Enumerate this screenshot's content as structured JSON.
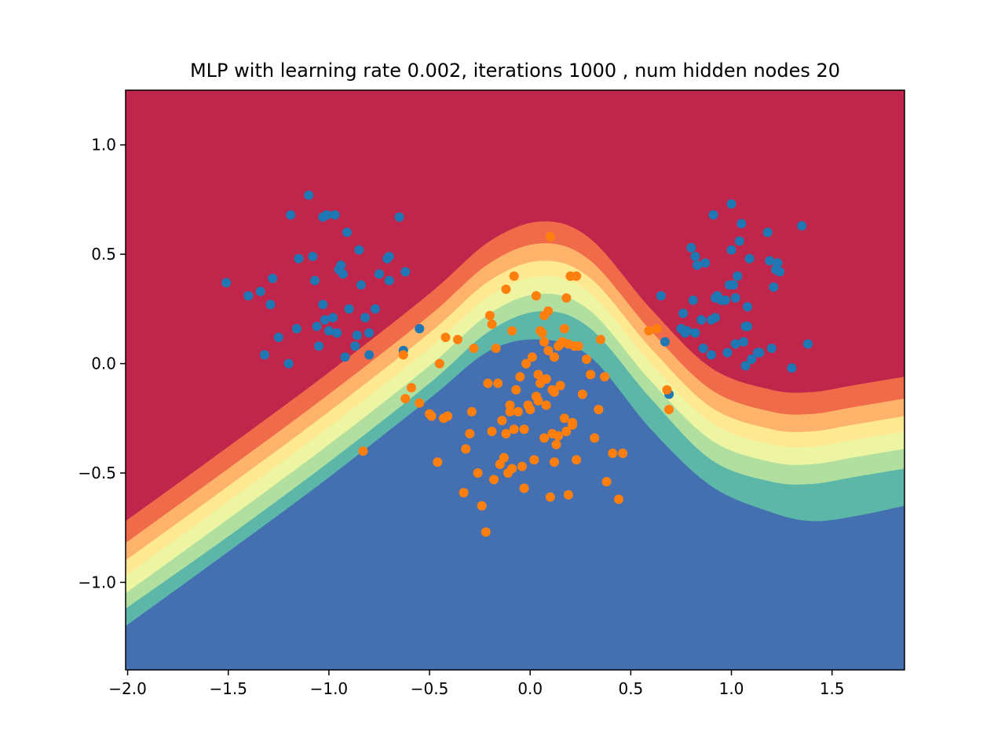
{
  "chart_data": {
    "type": "scatter",
    "title": "MLP with learning rate 0.002, iterations 1000 , num hidden nodes 20",
    "xlabel": "",
    "ylabel": "",
    "xlim": [
      -2.01,
      1.86
    ],
    "ylim": [
      -1.4,
      1.25
    ],
    "x_ticks": [
      -2.0,
      -1.5,
      -1.0,
      -0.5,
      0.0,
      0.5,
      1.0,
      1.5
    ],
    "x_tick_labels": [
      "−2.0",
      "−1.5",
      "−1.0",
      "−0.5",
      "0.0",
      "0.5",
      "1.0",
      "1.5"
    ],
    "y_ticks": [
      1.0,
      0.5,
      0.0,
      -0.5,
      -1.0
    ],
    "y_tick_labels": [
      "1.0",
      "0.5",
      "0.0",
      "−0.5",
      "−1.0"
    ],
    "grid": false,
    "legend": "none",
    "background": {
      "type": "filled-contour",
      "levels": [
        {
          "color": "#c0264b",
          "boundary": [
            [
              -2.01,
              -0.58
            ],
            [
              -1.5,
              -0.24
            ],
            [
              -1.0,
              0.1
            ],
            [
              -0.5,
              0.44
            ],
            [
              -0.2,
              0.68
            ],
            [
              0.06,
              0.78
            ],
            [
              0.3,
              0.7
            ],
            [
              0.6,
              0.38
            ],
            [
              0.9,
              0.12
            ],
            [
              1.2,
              0.02
            ],
            [
              1.4,
              0.01
            ],
            [
              1.6,
              0.04
            ],
            [
              1.86,
              0.1
            ]
          ]
        },
        {
          "color": "#f06b4a",
          "boundary": [
            [
              -2.01,
              -0.72
            ],
            [
              -1.5,
              -0.38
            ],
            [
              -1.0,
              -0.04
            ],
            [
              -0.5,
              0.32
            ],
            [
              -0.2,
              0.56
            ],
            [
              0.06,
              0.65
            ],
            [
              0.3,
              0.57
            ],
            [
              0.6,
              0.25
            ],
            [
              0.9,
              -0.02
            ],
            [
              1.2,
              -0.12
            ],
            [
              1.4,
              -0.13
            ],
            [
              1.6,
              -0.1
            ],
            [
              1.86,
              -0.06
            ]
          ]
        },
        {
          "color": "#fdb46a",
          "boundary": [
            [
              -2.01,
              -0.82
            ],
            [
              -1.5,
              -0.48
            ],
            [
              -1.0,
              -0.14
            ],
            [
              -0.5,
              0.22
            ],
            [
              -0.2,
              0.46
            ],
            [
              0.06,
              0.55
            ],
            [
              0.3,
              0.47
            ],
            [
              0.6,
              0.15
            ],
            [
              0.9,
              -0.12
            ],
            [
              1.2,
              -0.22
            ],
            [
              1.4,
              -0.23
            ],
            [
              1.6,
              -0.2
            ],
            [
              1.86,
              -0.16
            ]
          ]
        },
        {
          "color": "#fee992",
          "boundary": [
            [
              -2.01,
              -0.9
            ],
            [
              -1.5,
              -0.56
            ],
            [
              -1.0,
              -0.22
            ],
            [
              -0.5,
              0.14
            ],
            [
              -0.2,
              0.38
            ],
            [
              0.06,
              0.47
            ],
            [
              0.3,
              0.39
            ],
            [
              0.6,
              0.07
            ],
            [
              0.9,
              -0.2
            ],
            [
              1.2,
              -0.3
            ],
            [
              1.4,
              -0.31
            ],
            [
              1.6,
              -0.28
            ],
            [
              1.86,
              -0.24
            ]
          ]
        },
        {
          "color": "#eef5a2",
          "boundary": [
            [
              -2.01,
              -0.97
            ],
            [
              -1.5,
              -0.63
            ],
            [
              -1.0,
              -0.29
            ],
            [
              -0.5,
              0.07
            ],
            [
              -0.2,
              0.31
            ],
            [
              0.06,
              0.4
            ],
            [
              0.3,
              0.32
            ],
            [
              0.6,
              0.0
            ],
            [
              0.9,
              -0.27
            ],
            [
              1.2,
              -0.37
            ],
            [
              1.4,
              -0.38
            ],
            [
              1.6,
              -0.35
            ],
            [
              1.86,
              -0.31
            ]
          ]
        },
        {
          "color": "#b0dfa0",
          "boundary": [
            [
              -2.01,
              -1.05
            ],
            [
              -1.5,
              -0.71
            ],
            [
              -1.0,
              -0.37
            ],
            [
              -0.5,
              -0.01
            ],
            [
              -0.2,
              0.23
            ],
            [
              0.06,
              0.32
            ],
            [
              0.3,
              0.24
            ],
            [
              0.6,
              -0.08
            ],
            [
              0.9,
              -0.35
            ],
            [
              1.2,
              -0.45
            ],
            [
              1.4,
              -0.46
            ],
            [
              1.6,
              -0.43
            ],
            [
              1.86,
              -0.39
            ]
          ]
        },
        {
          "color": "#5db7a9",
          "boundary": [
            [
              -2.01,
              -1.12
            ],
            [
              -1.5,
              -0.79
            ],
            [
              -1.0,
              -0.45
            ],
            [
              -0.5,
              -0.09
            ],
            [
              -0.2,
              0.15
            ],
            [
              0.06,
              0.24
            ],
            [
              0.3,
              0.16
            ],
            [
              0.6,
              -0.16
            ],
            [
              0.9,
              -0.44
            ],
            [
              1.2,
              -0.54
            ],
            [
              1.4,
              -0.55
            ],
            [
              1.6,
              -0.52
            ],
            [
              1.86,
              -0.48
            ]
          ]
        },
        {
          "color": "#4470b2",
          "boundary": [
            [
              -2.01,
              -1.2
            ],
            [
              -1.5,
              -0.86
            ],
            [
              -1.0,
              -0.52
            ],
            [
              -0.5,
              -0.16
            ],
            [
              -0.2,
              0.06
            ],
            [
              0.06,
              0.11
            ],
            [
              0.3,
              0.03
            ],
            [
              0.6,
              -0.3
            ],
            [
              0.9,
              -0.56
            ],
            [
              1.2,
              -0.68
            ],
            [
              1.4,
              -0.72
            ],
            [
              1.6,
              -0.7
            ],
            [
              1.86,
              -0.65
            ]
          ]
        }
      ]
    },
    "series": [
      {
        "color": "#1f77b4",
        "x": [
          -1.51,
          -1.4,
          -1.34,
          -1.32,
          -1.29,
          -1.28,
          -1.25,
          -1.2,
          -1.19,
          -1.16,
          -1.15,
          -1.1,
          -1.08,
          -1.07,
          -1.06,
          -1.05,
          -1.03,
          -1.03,
          -1.02,
          -1.01,
          -1.0,
          -0.98,
          -0.97,
          -0.96,
          -0.95,
          -0.94,
          -0.93,
          -0.92,
          -0.91,
          -0.9,
          -0.87,
          -0.86,
          -0.85,
          -0.84,
          -0.82,
          -0.8,
          -0.8,
          -0.77,
          -0.75,
          -0.71,
          -0.7,
          -0.7,
          -0.65,
          -0.63,
          -0.62,
          -0.55,
          0.65,
          0.67,
          0.69,
          0.75,
          0.76,
          0.77,
          0.78,
          0.8,
          0.81,
          0.82,
          0.82,
          0.83,
          0.85,
          0.86,
          0.87,
          0.9,
          0.9,
          0.91,
          0.92,
          0.92,
          0.93,
          0.95,
          0.97,
          0.98,
          0.99,
          1.0,
          1.0,
          1.01,
          1.02,
          1.02,
          1.03,
          1.04,
          1.05,
          1.06,
          1.07,
          1.07,
          1.08,
          1.08,
          1.09,
          1.1,
          1.13,
          1.14,
          1.18,
          1.19,
          1.2,
          1.21,
          1.22,
          1.23,
          1.24,
          1.3,
          1.35,
          1.38
        ],
        "y": [
          0.37,
          0.31,
          0.33,
          0.04,
          0.27,
          0.39,
          0.12,
          0.0,
          0.68,
          0.16,
          0.48,
          0.77,
          0.49,
          0.38,
          0.17,
          0.08,
          0.27,
          0.67,
          0.2,
          0.68,
          0.15,
          0.21,
          0.68,
          0.14,
          0.43,
          0.45,
          0.41,
          0.03,
          0.6,
          0.25,
          0.08,
          0.13,
          0.52,
          0.36,
          0.21,
          0.04,
          0.14,
          0.25,
          0.41,
          0.48,
          0.38,
          0.49,
          0.67,
          0.06,
          0.42,
          0.16,
          0.31,
          0.1,
          -0.14,
          0.16,
          0.23,
          0.14,
          0.15,
          0.53,
          0.29,
          0.14,
          0.49,
          0.45,
          0.2,
          0.07,
          0.46,
          0.04,
          0.2,
          0.68,
          0.21,
          0.3,
          0.31,
          0.29,
          0.29,
          0.05,
          0.36,
          0.52,
          0.73,
          0.36,
          0.3,
          0.09,
          0.4,
          0.56,
          0.64,
          0.1,
          -0.01,
          0.17,
          0.17,
          0.26,
          0.48,
          0.02,
          0.05,
          0.05,
          0.6,
          0.47,
          0.07,
          0.35,
          0.43,
          0.46,
          0.42,
          -0.02,
          0.63,
          0.09
        ]
      },
      {
        "color": "#ff7f0e",
        "x": [
          -0.83,
          -0.63,
          -0.62,
          -0.59,
          -0.55,
          -0.5,
          -0.49,
          -0.46,
          -0.45,
          -0.43,
          -0.42,
          -0.41,
          -0.36,
          -0.33,
          -0.32,
          -0.3,
          -0.29,
          -0.28,
          -0.26,
          -0.24,
          -0.22,
          -0.21,
          -0.2,
          -0.19,
          -0.19,
          -0.18,
          -0.17,
          -0.16,
          -0.15,
          -0.14,
          -0.13,
          -0.12,
          -0.12,
          -0.11,
          -0.1,
          -0.1,
          -0.09,
          -0.09,
          -0.08,
          -0.08,
          -0.07,
          -0.06,
          -0.05,
          -0.04,
          -0.03,
          -0.03,
          -0.02,
          -0.01,
          0.0,
          0.01,
          0.02,
          0.03,
          0.03,
          0.04,
          0.04,
          0.05,
          0.05,
          0.06,
          0.07,
          0.07,
          0.08,
          0.08,
          0.09,
          0.1,
          0.11,
          0.11,
          0.12,
          0.12,
          0.13,
          0.14,
          0.14,
          0.15,
          0.15,
          0.16,
          0.17,
          0.18,
          0.19,
          0.19,
          0.2,
          0.2,
          0.21,
          0.22,
          0.23,
          0.24,
          0.26,
          0.28,
          0.3,
          0.32,
          0.34,
          0.35,
          0.37,
          0.38,
          0.41,
          0.44,
          0.46,
          0.59,
          0.63,
          0.68,
          0.69,
          0.1,
          0.12,
          0.17,
          0.18,
          0.21,
          0.23,
          0.07,
          0.09
        ],
        "y": [
          -0.4,
          0.04,
          -0.16,
          -0.11,
          -0.18,
          -0.23,
          -0.24,
          -0.45,
          0.0,
          -0.25,
          0.12,
          -0.24,
          0.11,
          -0.59,
          -0.39,
          -0.32,
          -0.22,
          0.07,
          -0.5,
          -0.65,
          -0.77,
          -0.09,
          0.22,
          0.18,
          -0.31,
          -0.53,
          0.07,
          -0.09,
          -0.46,
          -0.26,
          -0.43,
          0.34,
          -0.32,
          -0.5,
          -0.19,
          -0.22,
          -0.48,
          0.15,
          -0.3,
          0.4,
          -0.12,
          -0.22,
          -0.06,
          -0.47,
          -0.57,
          -0.3,
          0.0,
          -0.19,
          -0.21,
          0.03,
          -0.44,
          -0.15,
          0.31,
          -0.05,
          -0.17,
          -0.09,
          0.15,
          0.14,
          0.22,
          0.1,
          -0.19,
          -0.07,
          0.24,
          -0.61,
          -0.12,
          -0.32,
          -0.45,
          -0.13,
          -0.37,
          -0.33,
          0.08,
          0.09,
          -0.1,
          0.1,
          0.16,
          -0.31,
          0.09,
          -0.6,
          0.4,
          0.4,
          -0.28,
          0.08,
          -0.44,
          0.08,
          -0.14,
          0.02,
          -0.05,
          -0.34,
          -0.21,
          0.11,
          -0.06,
          -0.54,
          -0.41,
          -0.62,
          -0.41,
          0.15,
          0.16,
          -0.12,
          -0.21,
          0.58,
          0.03,
          -0.25,
          0.3,
          -0.27,
          0.4,
          -0.34,
          0.06
        ]
      }
    ]
  }
}
